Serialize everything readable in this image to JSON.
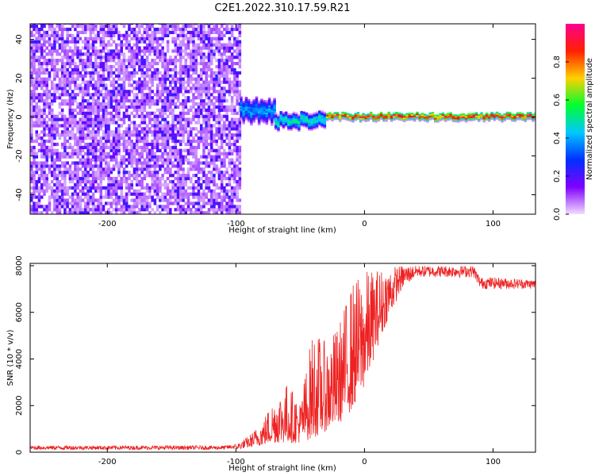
{
  "figure": {
    "title": "C2E1.2022.310.17.59.R21"
  },
  "chart_data": [
    {
      "type": "heatmap",
      "xlabel": "Height of straight line (km)",
      "ylabel": "Frequency (Hz)",
      "xlim": [
        -260,
        133
      ],
      "ylim": [
        -50,
        48
      ],
      "x_ticks": [
        -200,
        -100,
        0,
        100
      ],
      "y_ticks": [
        -40,
        -20,
        0,
        20,
        40
      ],
      "colorbar": {
        "label": "Normalized spectral amplitude",
        "range": [
          0,
          1
        ],
        "ticks": [
          0.0,
          0.2,
          0.4,
          0.6,
          0.8
        ],
        "colormap": "rainbow",
        "colors": [
          "#f2ddff",
          "#8000ff",
          "#0030ff",
          "#00c8ff",
          "#00ff30",
          "#ffd000",
          "#ff2000",
          "#ff0090"
        ]
      },
      "regions": [
        {
          "x_range": [
            -260,
            -97
          ],
          "freq_range": [
            -50,
            48
          ],
          "amplitude": 0.1,
          "description_level": "noise"
        },
        {
          "x_range": [
            -97,
            -70
          ],
          "freq_center": 3,
          "freq_halfwidth": 6,
          "amplitude": 0.4
        },
        {
          "x_range": [
            -70,
            -30
          ],
          "freq_center": -2,
          "freq_halfwidth": 4,
          "amplitude": 0.5
        },
        {
          "x_range": [
            -30,
            133
          ],
          "freq_center": 0,
          "freq_halfwidth": 2,
          "amplitude": 0.9
        }
      ]
    },
    {
      "type": "line",
      "xlabel": "Height of straight line (km)",
      "ylabel": "SNR (10 * v/v)",
      "xlim": [
        -260,
        133
      ],
      "ylim": [
        0,
        8100
      ],
      "x_ticks": [
        -200,
        -100,
        0,
        100
      ],
      "y_ticks": [
        0,
        2000,
        4000,
        6000,
        8000
      ],
      "color": "#ee2222",
      "envelope": {
        "x": [
          -260,
          -110,
          -100,
          -90,
          -80,
          -70,
          -60,
          -50,
          -40,
          -30,
          -20,
          -10,
          0,
          10,
          20,
          30,
          40,
          60,
          85,
          90,
          100,
          133
        ],
        "low": [
          100,
          100,
          120,
          200,
          300,
          400,
          400,
          400,
          600,
          900,
          1200,
          1800,
          2800,
          4500,
          6000,
          7000,
          7500,
          7500,
          7500,
          7000,
          7000,
          7000
        ],
        "high": [
          280,
          280,
          350,
          700,
          1300,
          2400,
          3000,
          2200,
          5300,
          4700,
          5500,
          7300,
          7800,
          7900,
          8000,
          8000,
          8000,
          8000,
          8000,
          7500,
          7500,
          7400
        ]
      }
    }
  ]
}
